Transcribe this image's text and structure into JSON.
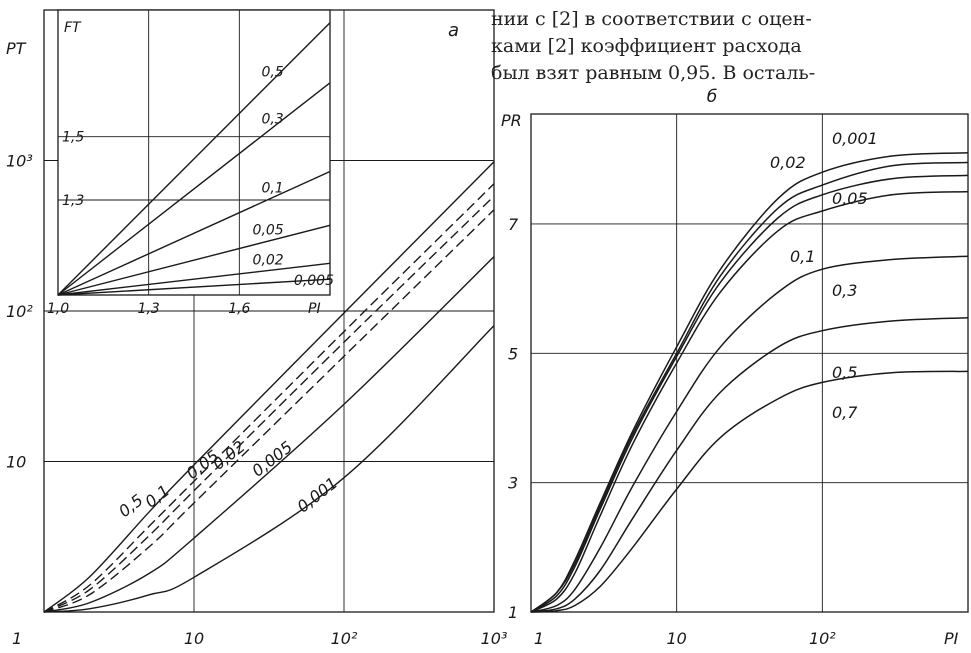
{
  "text_block": {
    "lines": [
      "нии с [2] в соответствии с оцен-",
      "ками [2] коэффициент расхода",
      "был взят равным 0,95. В осталь-"
    ]
  },
  "colors": {
    "ink": "#1a1a1a",
    "paper": "#ffffff"
  },
  "chart_data": [
    {
      "panel_label": "а",
      "type": "line",
      "ylabel": "P_T",
      "xscale": "log",
      "yscale": "log",
      "xlim": [
        1,
        1000
      ],
      "ylim": [
        1,
        10000
      ],
      "x_tick_labels": [
        "1",
        "10",
        "10²",
        "10³"
      ],
      "y_tick_labels": [
        "10",
        "10²",
        "10³"
      ],
      "grid": true,
      "series": [
        {
          "name": "0,5",
          "style": "solid",
          "x": [
            1,
            2,
            5,
            10,
            100,
            1000
          ],
          "y": [
            1,
            1.7,
            4.6,
            9.5,
            97,
            980
          ]
        },
        {
          "name": "0,1",
          "style": "dashed",
          "x": [
            1,
            2,
            5,
            10,
            100,
            1000
          ],
          "y": [
            1,
            1.5,
            3.7,
            7.4,
            73,
            700
          ]
        },
        {
          "name": "0,05",
          "style": "dashed",
          "x": [
            1,
            2,
            5,
            10,
            100,
            1000
          ],
          "y": [
            1,
            1.4,
            3.2,
            6.4,
            62,
            580
          ]
        },
        {
          "name": "0,02",
          "style": "dashed",
          "x": [
            1,
            2,
            5,
            10,
            100,
            1000
          ],
          "y": [
            1,
            1.3,
            2.7,
            5.3,
            50,
            470
          ]
        },
        {
          "name": "0,005",
          "style": "solid",
          "x": [
            1,
            2,
            5,
            10,
            100,
            1000
          ],
          "y": [
            1,
            1.15,
            1.8,
            3.1,
            24,
            230
          ]
        },
        {
          "name": "0,001",
          "style": "solid",
          "x": [
            1,
            2,
            5,
            10,
            100,
            1000
          ],
          "y": [
            1,
            1.05,
            1.3,
            1.7,
            7.8,
            80
          ]
        }
      ],
      "inset": {
        "ylabel": "F_T",
        "xlabel": "P_I",
        "xlim": [
          1.0,
          1.9
        ],
        "ylim": [
          1.0,
          1.9
        ],
        "x_tick_labels": [
          "1,0",
          "1,3",
          "1,6"
        ],
        "y_tick_labels": [
          "1,3",
          "1,5"
        ],
        "series": [
          {
            "name": "0,5",
            "x": [
              1.0,
              1.9
            ],
            "y": [
              1.0,
              1.86
            ]
          },
          {
            "name": "0,3",
            "x": [
              1.0,
              1.9
            ],
            "y": [
              1.0,
              1.67
            ]
          },
          {
            "name": "0,1",
            "x": [
              1.0,
              1.9
            ],
            "y": [
              1.0,
              1.39
            ]
          },
          {
            "name": "0,05",
            "x": [
              1.0,
              1.9
            ],
            "y": [
              1.0,
              1.22
            ]
          },
          {
            "name": "0,02",
            "x": [
              1.0,
              1.9
            ],
            "y": [
              1.0,
              1.1
            ]
          },
          {
            "name": "0,005",
            "x": [
              1.0,
              1.9
            ],
            "y": [
              1.0,
              1.05
            ]
          }
        ]
      }
    },
    {
      "panel_label": "б",
      "type": "line",
      "ylabel": "P_R",
      "xlabel": "P_I",
      "xscale": "log",
      "yscale": "linear",
      "xlim": [
        1,
        1000
      ],
      "ylim": [
        1,
        8.7
      ],
      "x_tick_labels": [
        "1",
        "10",
        "10²"
      ],
      "y_tick_labels": [
        "1",
        "3",
        "5",
        "7"
      ],
      "grid": true,
      "series": [
        {
          "name": "0,001",
          "x": [
            1,
            1.5,
            2,
            3,
            5,
            10,
            20,
            50,
            100,
            300,
            1000
          ],
          "y": [
            1,
            1.3,
            1.8,
            2.7,
            3.8,
            5.1,
            6.3,
            7.4,
            7.8,
            8.05,
            8.1
          ]
        },
        {
          "name": "0,02",
          "x": [
            1,
            1.5,
            2,
            3,
            5,
            10,
            20,
            50,
            100,
            300,
            1000
          ],
          "y": [
            1,
            1.3,
            1.75,
            2.65,
            3.75,
            5.0,
            6.2,
            7.25,
            7.6,
            7.9,
            7.95
          ]
        },
        {
          "name": "0,05",
          "x": [
            1,
            1.5,
            2,
            3,
            5,
            10,
            20,
            50,
            100,
            300,
            1000
          ],
          "y": [
            1,
            1.25,
            1.7,
            2.6,
            3.7,
            4.95,
            6.1,
            7.1,
            7.45,
            7.7,
            7.75
          ]
        },
        {
          "name": "0,1",
          "x": [
            1,
            1.5,
            2,
            3,
            5,
            10,
            20,
            50,
            100,
            300,
            1000
          ],
          "y": [
            1,
            1.2,
            1.6,
            2.5,
            3.6,
            4.85,
            5.95,
            6.9,
            7.2,
            7.45,
            7.5
          ]
        },
        {
          "name": "0,3",
          "x": [
            1,
            1.5,
            2,
            3,
            5,
            10,
            20,
            50,
            100,
            300,
            1000
          ],
          "y": [
            1,
            1.1,
            1.35,
            2.0,
            2.95,
            4.1,
            5.1,
            5.95,
            6.3,
            6.45,
            6.5
          ]
        },
        {
          "name": "0,5",
          "x": [
            1,
            1.5,
            2,
            3,
            5,
            10,
            20,
            50,
            100,
            300,
            1000
          ],
          "y": [
            1,
            1.05,
            1.2,
            1.65,
            2.45,
            3.5,
            4.4,
            5.1,
            5.35,
            5.5,
            5.55
          ]
        },
        {
          "name": "0,7",
          "x": [
            1,
            1.5,
            2,
            3,
            5,
            10,
            20,
            50,
            100,
            300,
            1000
          ],
          "y": [
            1,
            1.02,
            1.1,
            1.4,
            2.0,
            2.9,
            3.7,
            4.3,
            4.55,
            4.7,
            4.72
          ]
        }
      ]
    }
  ]
}
